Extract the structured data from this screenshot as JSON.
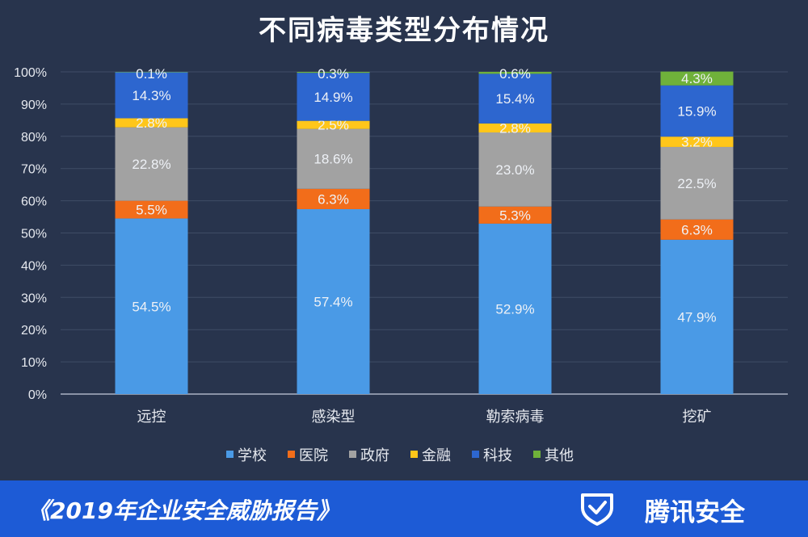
{
  "chart_data": {
    "type": "bar",
    "stacked": true,
    "title": "不同病毒类型分布情况",
    "categories": [
      "远控",
      "感染型",
      "勒索病毒",
      "挖矿"
    ],
    "ylim": [
      0,
      100
    ],
    "yticks": [
      "0%",
      "10%",
      "20%",
      "30%",
      "40%",
      "50%",
      "60%",
      "70%",
      "80%",
      "90%",
      "100%"
    ],
    "grid": true,
    "legend_position": "bottom",
    "series": [
      {
        "name": "学校",
        "color": "#4a9ae6",
        "values": [
          54.5,
          57.4,
          52.9,
          47.9
        ],
        "labels": [
          "54.5%",
          "57.4%",
          "52.9%",
          "47.9%"
        ]
      },
      {
        "name": "医院",
        "color": "#f26d1a",
        "values": [
          5.5,
          6.3,
          5.3,
          6.3
        ],
        "labels": [
          "5.5%",
          "6.3%",
          "5.3%",
          "6.3%"
        ]
      },
      {
        "name": "政府",
        "color": "#a2a2a2",
        "values": [
          22.8,
          18.6,
          23.0,
          22.5
        ],
        "labels": [
          "22.8%",
          "18.6%",
          "23.0%",
          "22.5%"
        ]
      },
      {
        "name": "金融",
        "color": "#ffc61a",
        "values": [
          2.8,
          2.5,
          2.8,
          3.2
        ],
        "labels": [
          "2.8%",
          "2.5%",
          "2.8%",
          "3.2%"
        ]
      },
      {
        "name": "科技",
        "color": "#2d66cf",
        "values": [
          14.3,
          14.9,
          15.4,
          15.9
        ],
        "labels": [
          "14.3%",
          "14.9%",
          "15.4%",
          "15.9%"
        ]
      },
      {
        "name": "其他",
        "color": "#6fb13a",
        "values": [
          0.1,
          0.3,
          0.6,
          4.3
        ],
        "labels": [
          "0.1%",
          "0.3%",
          "0.6%",
          "4.3%"
        ]
      }
    ]
  },
  "footer": {
    "report_title": "《2019年企业安全威胁报告》",
    "brand": "腾讯安全",
    "brand_icon": "shield-check-icon"
  }
}
